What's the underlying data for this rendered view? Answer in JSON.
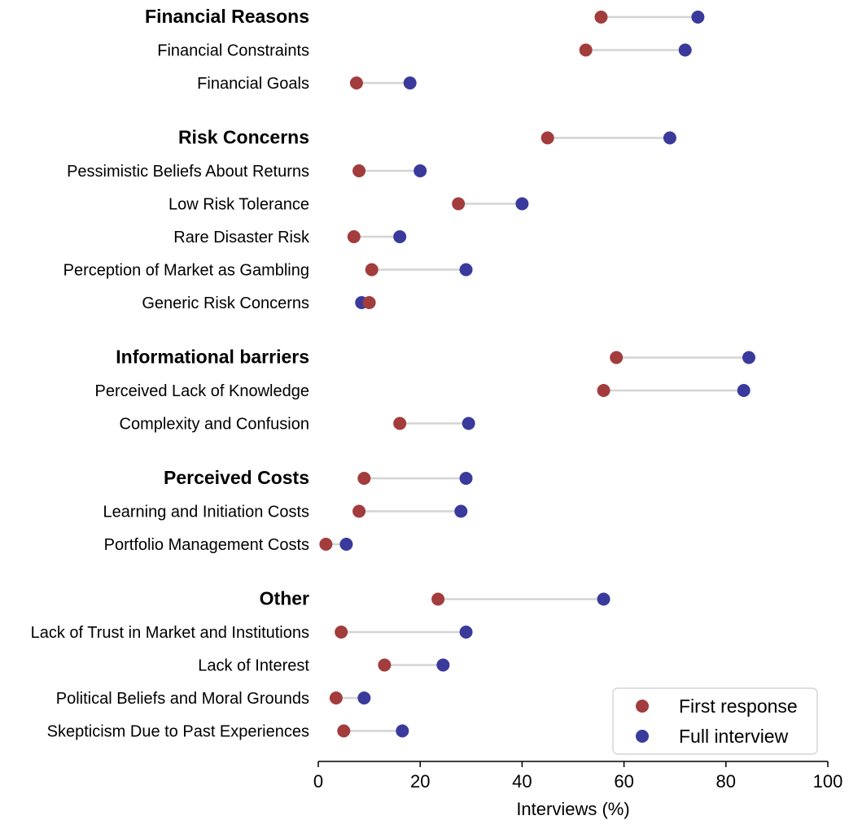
{
  "chart_data": {
    "type": "dumbbell",
    "xlabel": "Interviews (%)",
    "xlim": [
      0,
      100
    ],
    "xticks": [
      0,
      20,
      40,
      60,
      80,
      100
    ],
    "grid": false,
    "legend_placement": "bottom-right",
    "colors": {
      "first": "#a33c3c",
      "full": "#3a3a9c",
      "connector": "#d4d4d4"
    },
    "series": [
      {
        "name": "First response",
        "key": "first"
      },
      {
        "name": "Full interview",
        "key": "full"
      }
    ],
    "rows": [
      {
        "label": "Financial Reasons",
        "group": true,
        "first": 55.5,
        "full": 74.5
      },
      {
        "label": "Financial Constraints",
        "group": false,
        "first": 52.5,
        "full": 72
      },
      {
        "label": "Financial Goals",
        "group": false,
        "first": 7.5,
        "full": 18
      },
      {
        "label": "Risk Concerns",
        "group": true,
        "first": 45,
        "full": 69
      },
      {
        "label": "Pessimistic Beliefs About Returns",
        "group": false,
        "first": 8,
        "full": 20
      },
      {
        "label": "Low Risk Tolerance",
        "group": false,
        "first": 27.5,
        "full": 40
      },
      {
        "label": "Rare Disaster Risk",
        "group": false,
        "first": 7,
        "full": 16
      },
      {
        "label": "Perception of Market as Gambling",
        "group": false,
        "first": 10.5,
        "full": 29
      },
      {
        "label": "Generic Risk Concerns",
        "group": false,
        "first": 10,
        "full": 8.5
      },
      {
        "label": "Informational barriers",
        "group": true,
        "first": 58.5,
        "full": 84.5
      },
      {
        "label": "Perceived Lack of Knowledge",
        "group": false,
        "first": 56,
        "full": 83.5
      },
      {
        "label": "Complexity and Confusion",
        "group": false,
        "first": 16,
        "full": 29.5
      },
      {
        "label": "Perceived Costs",
        "group": true,
        "first": 9,
        "full": 29
      },
      {
        "label": "Learning and Initiation Costs",
        "group": false,
        "first": 8,
        "full": 28
      },
      {
        "label": "Portfolio Management Costs",
        "group": false,
        "first": 1.5,
        "full": 5.5
      },
      {
        "label": "Other",
        "group": true,
        "first": 23.5,
        "full": 56
      },
      {
        "label": "Lack of Trust in Market and Institutions",
        "group": false,
        "first": 4.5,
        "full": 29
      },
      {
        "label": "Lack of Interest",
        "group": false,
        "first": 13,
        "full": 24.5
      },
      {
        "label": "Political Beliefs and Moral Grounds",
        "group": false,
        "first": 3.5,
        "full": 9
      },
      {
        "label": "Skepticism Due to Past Experiences",
        "group": false,
        "first": 5,
        "full": 16.5
      }
    ]
  }
}
